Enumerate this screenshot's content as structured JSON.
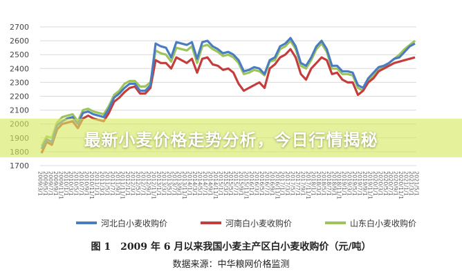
{
  "banner": {
    "title": "最新小麦价格走势分析，今日行情揭秘"
  },
  "caption": {
    "figure_no": "图 1",
    "text": "2009 年 6 月以来我国小麦主产区白小麦收购价（元/吨）"
  },
  "source": {
    "text": "数据来源：中华粮网价格监测"
  },
  "colors": {
    "hebei": "#4a7cc0",
    "henan": "#c43c3c",
    "shandong": "#9cc45a",
    "grid": "#d9d9d9",
    "banner": "#d6e860"
  },
  "chart_data": {
    "type": "line",
    "title": "",
    "xlabel": "",
    "ylabel": "",
    "ylim": [
      1700,
      2700
    ],
    "yticks": [
      1700,
      1800,
      1900,
      2000,
      2100,
      2200,
      2300,
      2400,
      2500,
      2600,
      2700
    ],
    "grid": true,
    "legend_position": "bottom",
    "x_tick_labels": [
      "2009/3/1",
      "2009/5/1",
      "2009/7/1",
      "2009/9/1",
      "2009/11/1",
      "2010/1/1",
      "2010/3/1",
      "2010/5/1",
      "2010/7/1",
      "2010/9/1",
      "2010/11/1",
      "2011/1/1",
      "2011/3/1",
      "2011/5/1",
      "2011/7/1",
      "2011/9/1",
      "2011/11/1",
      "2012/1/1",
      "2012/3/1",
      "2012/5/1",
      "2012/7/1",
      "2012/9/1",
      "2012/11/1",
      "2013/1/1",
      "2013/3/1",
      "2013/5/1",
      "2013/7/1",
      "2013/9/1",
      "2013/11/1",
      "2014/1/1",
      "2014/3/1",
      "2014/5/1",
      "2014/7/1",
      "2014/9/1",
      "2014/11/1",
      "2015/1/1",
      "2015/3/1",
      "2015/5/1",
      "2015/7/1",
      "2015/9/1",
      "2015/11/1",
      "2016/1/1",
      "2016/3/1",
      "2016/5/1",
      "2016/7/1",
      "2016/9/1",
      "2016/11/1",
      "2017/1/1",
      "2017/3/1",
      "2017/5/1",
      "2017/7/1",
      "2017/9/1",
      "2017/11/1",
      "2018/1/1",
      "2018/3/1",
      "2018/5/1",
      "2018/7/1",
      "2018/9/1",
      "2018/11/1",
      "2019/1/1",
      "2019/3/1",
      "2019/5/1",
      "2019/7/1",
      "2019/9/1",
      "2019/11/1",
      "2020/1/1",
      "2020/3/1",
      "2020/5/1",
      "2020/7/1",
      "2020/9/1",
      "2020/11/1",
      "2021/1/1",
      "2021/3/1",
      "2021/5/1"
    ],
    "x": [
      "2009/5",
      "2009/7",
      "2009/9",
      "2009/11",
      "2010/1",
      "2010/3",
      "2010/5",
      "2010/7",
      "2010/9",
      "2010/11",
      "2011/1",
      "2011/3",
      "2011/5",
      "2011/7",
      "2011/9",
      "2011/11",
      "2012/1",
      "2012/3",
      "2012/5",
      "2012/7",
      "2012/9",
      "2012/11",
      "2013/1",
      "2013/3",
      "2013/5",
      "2013/7",
      "2013/9",
      "2013/11",
      "2014/1",
      "2014/3",
      "2014/5",
      "2014/7",
      "2014/9",
      "2014/11",
      "2015/1",
      "2015/3",
      "2015/5",
      "2015/7",
      "2015/9",
      "2015/11",
      "2016/1",
      "2016/3",
      "2016/5",
      "2016/7",
      "2016/9",
      "2016/11",
      "2017/1",
      "2017/3",
      "2017/5",
      "2017/7",
      "2017/9",
      "2017/11",
      "2018/1",
      "2018/3",
      "2018/5",
      "2018/7",
      "2018/9",
      "2018/11",
      "2019/1",
      "2019/3",
      "2019/5",
      "2019/7",
      "2019/9",
      "2019/11",
      "2020/1",
      "2020/3",
      "2020/5",
      "2020/7",
      "2020/9",
      "2020/11",
      "2021/1",
      "2021/3",
      "2021/5"
    ],
    "series": [
      {
        "name": "河北白小麦收购价",
        "color": "#4a7cc0",
        "values": [
          1820,
          1890,
          1870,
          1990,
          2020,
          2040,
          2050,
          2000,
          2080,
          2090,
          2070,
          2060,
          2050,
          2110,
          2190,
          2220,
          2260,
          2290,
          2290,
          2240,
          2240,
          2280,
          2580,
          2560,
          2550,
          2480,
          2590,
          2580,
          2570,
          2590,
          2470,
          2590,
          2600,
          2560,
          2540,
          2510,
          2520,
          2500,
          2460,
          2380,
          2390,
          2410,
          2400,
          2360,
          2460,
          2480,
          2560,
          2580,
          2620,
          2560,
          2440,
          2420,
          2480,
          2560,
          2600,
          2540,
          2420,
          2420,
          2380,
          2380,
          2370,
          2280,
          2260,
          2330,
          2370,
          2410,
          2420,
          2440,
          2470,
          2480,
          2520,
          2560,
          2580
        ]
      },
      {
        "name": "河南白小麦收购价",
        "color": "#c43c3c",
        "values": [
          1790,
          1870,
          1850,
          1960,
          2000,
          2010,
          2020,
          1970,
          2040,
          2060,
          2040,
          2030,
          2020,
          2080,
          2160,
          2190,
          2230,
          2260,
          2270,
          2220,
          2220,
          2260,
          2460,
          2440,
          2440,
          2400,
          2480,
          2460,
          2440,
          2470,
          2370,
          2470,
          2480,
          2430,
          2420,
          2390,
          2400,
          2370,
          2290,
          2240,
          2260,
          2280,
          2300,
          2260,
          2400,
          2430,
          2480,
          2500,
          2540,
          2480,
          2360,
          2320,
          2400,
          2440,
          2480,
          2460,
          2360,
          2370,
          2320,
          2300,
          2300,
          2210,
          2240,
          2300,
          2330,
          2380,
          2400,
          2420,
          2440,
          2450,
          2460,
          2470,
          2480
        ]
      },
      {
        "name": "山东白小麦收购价",
        "color": "#9cc45a",
        "values": [
          1840,
          1910,
          1900,
          2010,
          2050,
          2060,
          2070,
          2020,
          2100,
          2110,
          2090,
          2080,
          2070,
          2130,
          2210,
          2240,
          2290,
          2310,
          2310,
          2270,
          2270,
          2300,
          2530,
          2510,
          2500,
          2450,
          2550,
          2540,
          2530,
          2560,
          2440,
          2560,
          2570,
          2540,
          2520,
          2490,
          2500,
          2480,
          2440,
          2360,
          2370,
          2390,
          2380,
          2350,
          2450,
          2460,
          2540,
          2560,
          2600,
          2540,
          2420,
          2400,
          2460,
          2540,
          2580,
          2520,
          2400,
          2400,
          2360,
          2360,
          2350,
          2260,
          2240,
          2310,
          2350,
          2400,
          2410,
          2440,
          2470,
          2500,
          2540,
          2570,
          2600
        ]
      }
    ]
  }
}
